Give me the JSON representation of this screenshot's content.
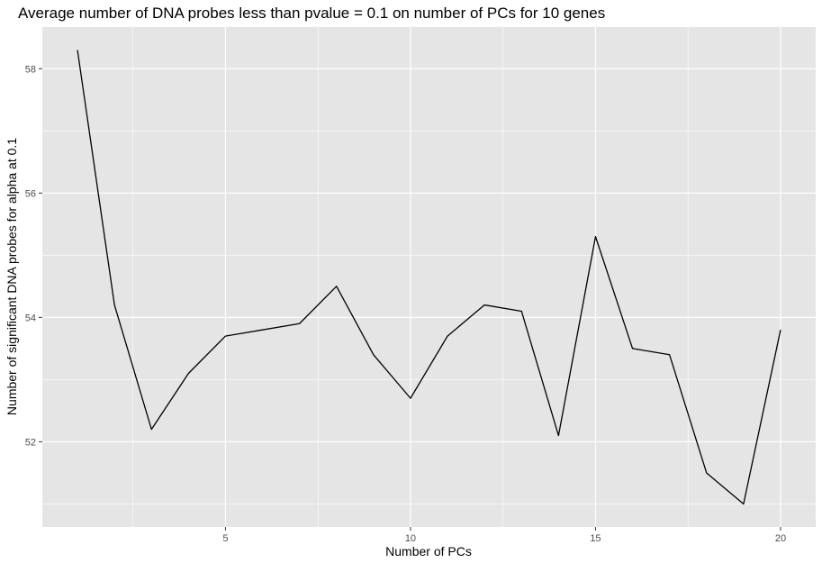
{
  "chart_data": {
    "type": "line",
    "title": "Average number of DNA probes less than pvalue = 0.1 on number of PCs for 10 genes",
    "xlabel": "Number of PCs",
    "ylabel": "Number of significant DNA probes for alpha at 0.1",
    "x": [
      1,
      2,
      3,
      4,
      5,
      6,
      7,
      8,
      9,
      10,
      11,
      12,
      13,
      14,
      15,
      16,
      17,
      18,
      19,
      20
    ],
    "series": [
      {
        "values": [
          58.3,
          54.2,
          52.2,
          53.1,
          53.7,
          53.8,
          53.9,
          54.5,
          53.4,
          52.7,
          53.7,
          54.2,
          54.1,
          52.1,
          55.3,
          53.5,
          53.4,
          51.5,
          51.0,
          53.8
        ]
      }
    ],
    "xlim": [
      0.05,
      20.95
    ],
    "ylim": [
      50.63,
      58.67
    ],
    "xticks": [
      5,
      10,
      15,
      20
    ],
    "yticks": [
      52,
      54,
      56,
      58
    ],
    "x_minor_ticks": [
      2.5,
      7.5,
      12.5,
      17.5
    ],
    "y_minor_ticks": [
      51,
      53,
      55,
      57
    ],
    "grid": true,
    "colors": {
      "panel_background": "#e5e5e5",
      "grid": "#ffffff",
      "line": "#000000",
      "tick_text": "#4d4d4d",
      "tick_mark": "#333333"
    }
  }
}
